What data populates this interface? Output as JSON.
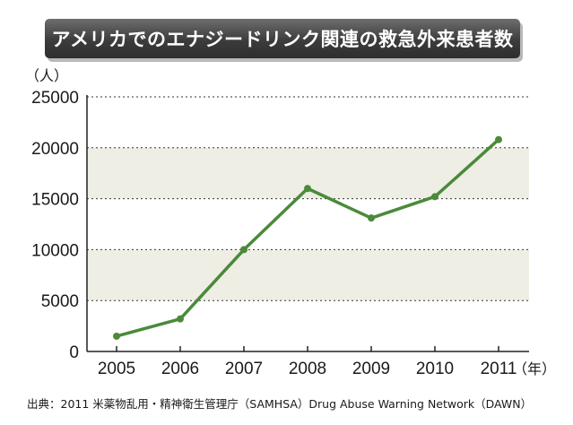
{
  "title": "アメリカでのエナジードリンク関連の救急外来患者数",
  "source": "出典：2011 米薬物乱用・精神衛生管理庁（SAMHSA）Drug Abuse Warning Network（DAWN）",
  "colors": {
    "line": "#4a8a3a",
    "band": "#eeeee5",
    "axis": "#222222",
    "grid": "#333333",
    "banner": "#3c3c3c"
  },
  "chart_data": {
    "type": "line",
    "title": "アメリカでのエナジードリンク関連の救急外来患者数",
    "y_unit": "（人）",
    "x_unit": "（年）",
    "x": [
      "2005",
      "2006",
      "2007",
      "2008",
      "2009",
      "2010",
      "2011"
    ],
    "series": [
      {
        "values": [
          1500,
          3200,
          10000,
          16000,
          13100,
          15200,
          20800
        ]
      }
    ],
    "ylim": [
      0,
      25000
    ],
    "yticks": [
      0,
      5000,
      10000,
      15000,
      20000,
      25000
    ],
    "ytick_labels": [
      "0",
      "5000",
      "10000",
      "15000",
      "20000",
      "25000"
    ],
    "grid": "horizontal dotted lines at each y tick",
    "background": "alternating shaded bands",
    "legend": "none",
    "markers": "filled circles"
  }
}
